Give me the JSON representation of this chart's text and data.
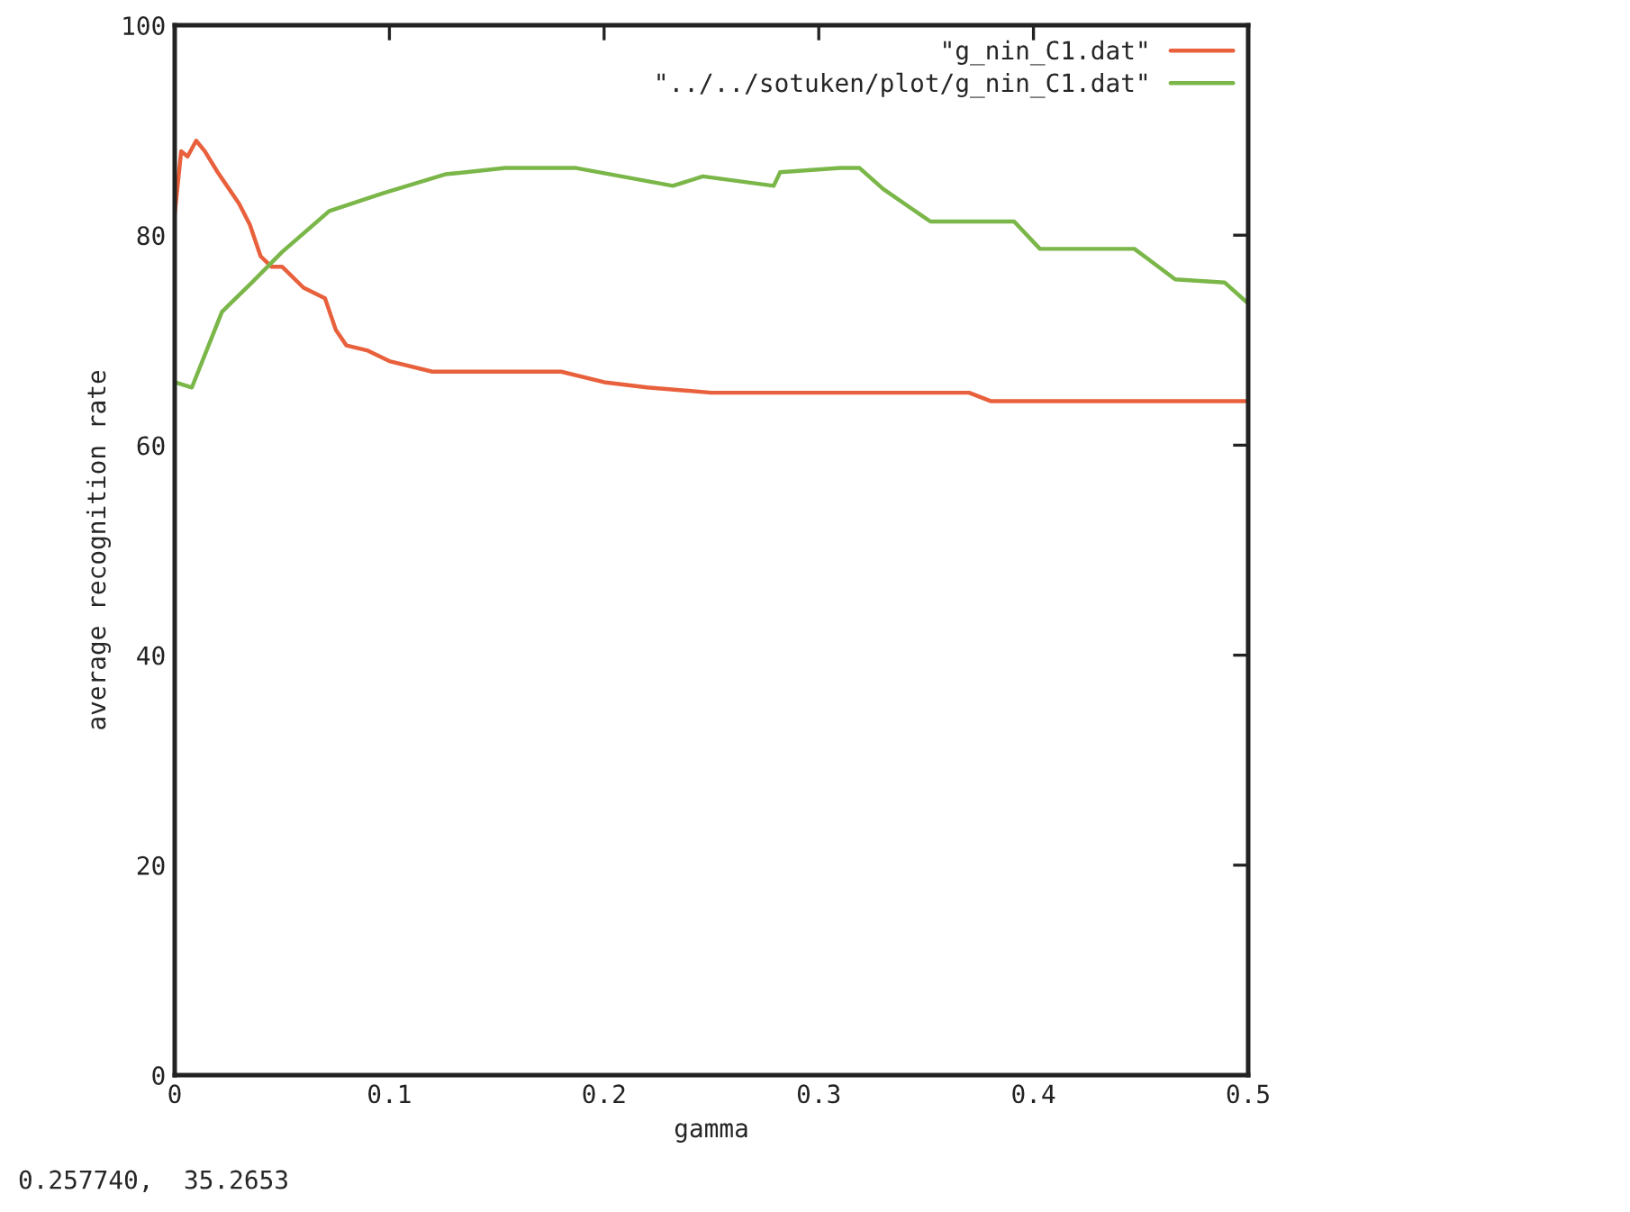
{
  "chart_data": {
    "type": "line",
    "xlabel": "gamma",
    "ylabel": "average recognition rate",
    "xlim": [
      0,
      0.5
    ],
    "ylim": [
      0,
      100
    ],
    "xticks": [
      0,
      0.1,
      0.2,
      0.3,
      0.4,
      0.5
    ],
    "yticks": [
      0,
      20,
      40,
      60,
      80,
      100
    ],
    "grid": false,
    "legend": "top right",
    "marker": "none",
    "line_style": "solid",
    "annotations": [
      "0.257740,  35.2653"
    ],
    "series": [
      {
        "name": "\"g_nin_C1.dat\"",
        "color": "#e8603c",
        "x": [
          0,
          0.003,
          0.006,
          0.01,
          0.014,
          0.02,
          0.03,
          0.035,
          0.04,
          0.045,
          0.05,
          0.06,
          0.07,
          0.075,
          0.08,
          0.09,
          0.1,
          0.12,
          0.15,
          0.18,
          0.2,
          0.22,
          0.25,
          0.3,
          0.37,
          0.38,
          0.5
        ],
        "values": [
          82,
          88,
          87.5,
          89,
          88,
          86,
          83,
          81,
          78,
          77,
          77,
          75,
          74,
          71,
          69.5,
          69,
          68,
          67,
          67,
          67,
          66,
          65.5,
          65,
          65,
          65,
          64.2,
          64.2
        ]
      },
      {
        "name": "\"../../sotuken/plot/g_nin_C1.dat\"",
        "color": "#7ab648",
        "x": [
          0,
          0.008,
          0.022,
          0.036,
          0.05,
          0.072,
          0.097,
          0.126,
          0.154,
          0.187,
          0.232,
          0.246,
          0.279,
          0.282,
          0.31,
          0.319,
          0.33,
          0.352,
          0.391,
          0.403,
          0.447,
          0.466,
          0.489,
          0.5
        ],
        "values": [
          66,
          65.5,
          72.7,
          75.5,
          78.4,
          82.3,
          84,
          85.8,
          86.4,
          86.4,
          84.7,
          85.6,
          84.7,
          86,
          86.4,
          86.4,
          84.4,
          81.3,
          81.3,
          78.7,
          78.7,
          75.8,
          75.5,
          73.5
        ]
      }
    ]
  }
}
